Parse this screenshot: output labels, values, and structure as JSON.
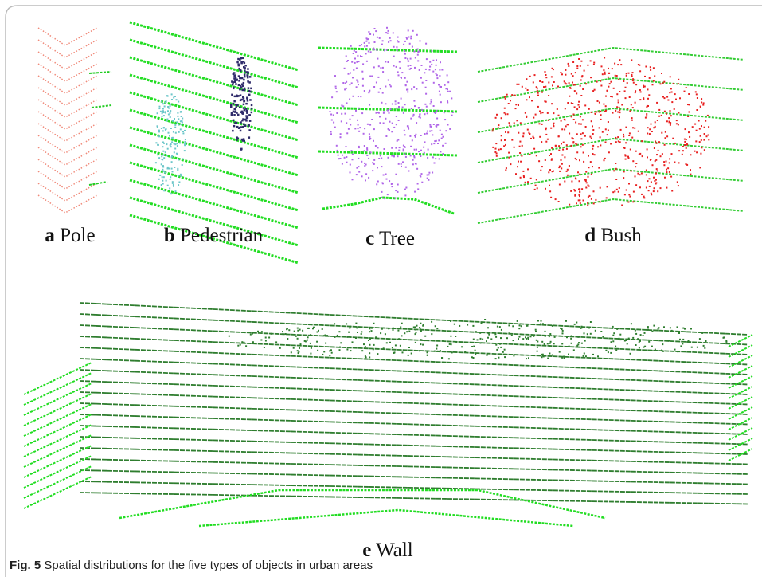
{
  "panels": [
    {
      "letter": "a",
      "label": "Pole"
    },
    {
      "letter": "b",
      "label": "Pedestrian"
    },
    {
      "letter": "c",
      "label": "Tree"
    },
    {
      "letter": "d",
      "label": "Bush"
    },
    {
      "letter": "e",
      "label": "Wall"
    }
  ],
  "caption": {
    "label": "Fig. 5",
    "text": "Spatial distributions for the five types of objects in urban areas"
  }
}
